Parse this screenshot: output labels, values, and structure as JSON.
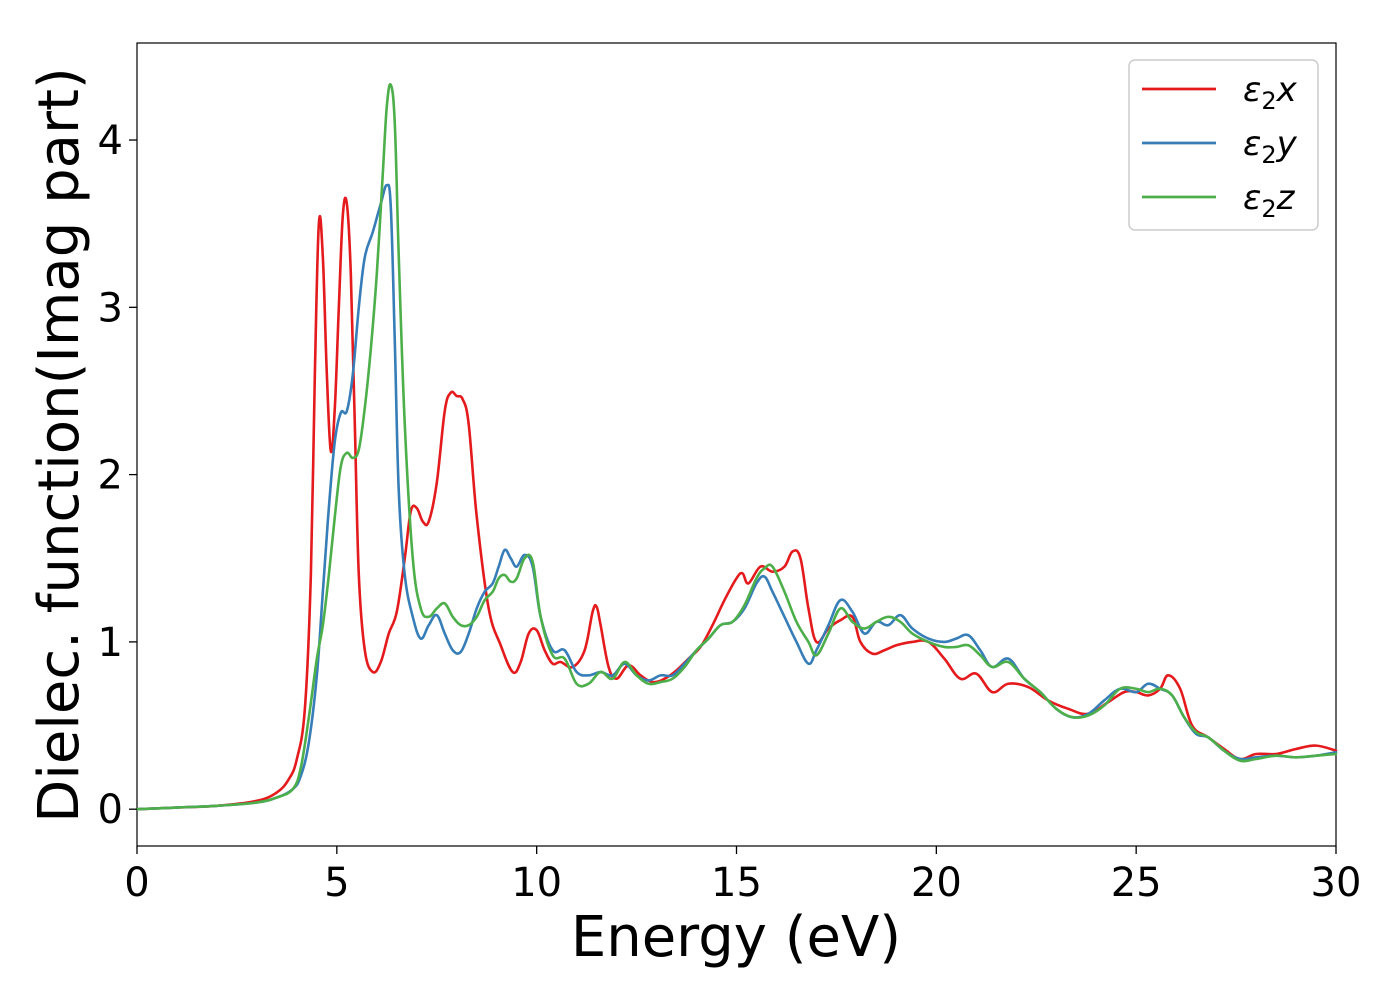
{
  "chart_data": {
    "type": "line",
    "title": "",
    "xlabel": "Energy (eV)",
    "ylabel": "Dielec. function(Imag part)",
    "xlim": [
      0,
      30
    ],
    "ylim": [
      -0.22,
      4.58
    ],
    "xticks": [
      0,
      5,
      10,
      15,
      20,
      25,
      30
    ],
    "yticks": [
      0,
      1,
      2,
      3,
      4
    ],
    "grid": false,
    "legend_position": "top-right",
    "series": [
      {
        "name": "ε2x",
        "legend": {
          "base": "ε",
          "sub": "2",
          "suffix": "x"
        },
        "color": "#e41a1c",
        "x": [
          0,
          1,
          2,
          3,
          3.5,
          3.8,
          4.0,
          4.2,
          4.35,
          4.45,
          4.55,
          4.65,
          4.75,
          4.85,
          4.95,
          5.05,
          5.15,
          5.25,
          5.35,
          5.45,
          5.55,
          5.7,
          5.9,
          6.1,
          6.3,
          6.5,
          6.7,
          6.85,
          7.0,
          7.15,
          7.3,
          7.5,
          7.7,
          7.85,
          8.0,
          8.15,
          8.3,
          8.5,
          8.8,
          9.1,
          9.4,
          9.6,
          9.8,
          10.0,
          10.2,
          10.4,
          10.6,
          10.9,
          11.2,
          11.4,
          11.5,
          11.6,
          11.8,
          12.0,
          12.3,
          12.6,
          12.9,
          13.2,
          13.5,
          13.8,
          14.1,
          14.4,
          14.7,
          15.0,
          15.15,
          15.3,
          15.6,
          15.9,
          16.2,
          16.4,
          16.6,
          16.8,
          17.0,
          17.3,
          17.6,
          17.9,
          18.1,
          18.4,
          18.7,
          19.0,
          19.4,
          19.8,
          20.2,
          20.6,
          21.0,
          21.4,
          21.8,
          22.3,
          22.8,
          23.3,
          23.8,
          24.3,
          24.7,
          25.0,
          25.3,
          25.6,
          25.8,
          26.1,
          26.4,
          26.8,
          27.2,
          27.6,
          28.0,
          28.5,
          29.0,
          29.5,
          30.0
        ],
        "y": [
          0.0,
          0.01,
          0.02,
          0.05,
          0.1,
          0.18,
          0.3,
          0.6,
          1.4,
          2.6,
          3.5,
          3.3,
          2.6,
          2.14,
          2.4,
          3.0,
          3.55,
          3.62,
          3.2,
          2.3,
          1.4,
          0.95,
          0.82,
          0.88,
          1.05,
          1.18,
          1.5,
          1.78,
          1.8,
          1.72,
          1.72,
          1.95,
          2.38,
          2.49,
          2.47,
          2.45,
          2.3,
          1.75,
          1.2,
          0.98,
          0.82,
          0.88,
          1.05,
          1.07,
          0.95,
          0.87,
          0.88,
          0.85,
          0.95,
          1.18,
          1.21,
          1.1,
          0.85,
          0.78,
          0.86,
          0.8,
          0.76,
          0.78,
          0.83,
          0.9,
          0.97,
          1.1,
          1.25,
          1.38,
          1.41,
          1.35,
          1.45,
          1.42,
          1.45,
          1.54,
          1.5,
          1.2,
          1.0,
          1.08,
          1.13,
          1.15,
          1.0,
          0.93,
          0.95,
          0.98,
          1.0,
          1.0,
          0.9,
          0.78,
          0.81,
          0.7,
          0.75,
          0.73,
          0.65,
          0.6,
          0.57,
          0.64,
          0.7,
          0.7,
          0.68,
          0.72,
          0.8,
          0.72,
          0.5,
          0.43,
          0.36,
          0.3,
          0.33,
          0.33,
          0.36,
          0.38,
          0.35
        ]
      },
      {
        "name": "ε2y",
        "legend": {
          "base": "ε",
          "sub": "2",
          "suffix": "y"
        },
        "color": "#377eb8",
        "x": [
          0,
          1,
          2,
          3,
          3.5,
          3.9,
          4.1,
          4.3,
          4.5,
          4.65,
          4.8,
          4.95,
          5.1,
          5.25,
          5.4,
          5.55,
          5.7,
          5.9,
          6.1,
          6.25,
          6.35,
          6.45,
          6.55,
          6.7,
          6.9,
          7.1,
          7.3,
          7.5,
          7.7,
          7.9,
          8.1,
          8.3,
          8.5,
          8.7,
          8.9,
          9.05,
          9.2,
          9.35,
          9.5,
          9.7,
          9.9,
          10.1,
          10.4,
          10.7,
          11.0,
          11.3,
          11.6,
          11.9,
          12.2,
          12.5,
          12.8,
          13.1,
          13.4,
          13.7,
          14.0,
          14.3,
          14.6,
          14.9,
          15.2,
          15.5,
          15.7,
          15.9,
          16.2,
          16.5,
          16.8,
          17.0,
          17.3,
          17.6,
          17.9,
          18.2,
          18.5,
          18.8,
          19.1,
          19.4,
          19.8,
          20.2,
          20.5,
          20.8,
          21.1,
          21.4,
          21.8,
          22.2,
          22.6,
          23.0,
          23.4,
          23.8,
          24.2,
          24.6,
          25.0,
          25.3,
          25.6,
          25.9,
          26.2,
          26.5,
          26.8,
          27.2,
          27.6,
          28.0,
          28.5,
          29.0,
          29.5,
          30.0
        ],
        "y": [
          0.0,
          0.01,
          0.02,
          0.04,
          0.07,
          0.12,
          0.2,
          0.4,
          0.8,
          1.3,
          1.8,
          2.2,
          2.37,
          2.38,
          2.6,
          3.0,
          3.3,
          3.45,
          3.62,
          3.73,
          3.6,
          2.8,
          1.9,
          1.4,
          1.15,
          1.02,
          1.1,
          1.16,
          1.05,
          0.95,
          0.94,
          1.05,
          1.2,
          1.3,
          1.35,
          1.45,
          1.55,
          1.5,
          1.45,
          1.52,
          1.45,
          1.15,
          0.95,
          0.95,
          0.82,
          0.8,
          0.82,
          0.8,
          0.87,
          0.8,
          0.77,
          0.8,
          0.8,
          0.87,
          0.95,
          1.02,
          1.1,
          1.12,
          1.2,
          1.35,
          1.39,
          1.3,
          1.15,
          1.0,
          0.87,
          0.95,
          1.1,
          1.25,
          1.18,
          1.05,
          1.12,
          1.1,
          1.16,
          1.08,
          1.02,
          1.0,
          1.02,
          1.04,
          0.95,
          0.85,
          0.9,
          0.78,
          0.7,
          0.6,
          0.55,
          0.57,
          0.65,
          0.72,
          0.7,
          0.75,
          0.72,
          0.68,
          0.55,
          0.45,
          0.43,
          0.35,
          0.3,
          0.31,
          0.32,
          0.31,
          0.32,
          0.34
        ]
      },
      {
        "name": "ε2z",
        "legend": {
          "base": "ε",
          "sub": "2",
          "suffix": "z"
        },
        "color": "#4daf4a",
        "x": [
          0,
          1,
          2,
          3,
          3.5,
          3.9,
          4.1,
          4.3,
          4.5,
          4.65,
          4.8,
          4.95,
          5.1,
          5.25,
          5.4,
          5.55,
          5.7,
          5.85,
          6.0,
          6.15,
          6.25,
          6.35,
          6.45,
          6.55,
          6.7,
          6.9,
          7.1,
          7.3,
          7.5,
          7.7,
          7.9,
          8.1,
          8.3,
          8.5,
          8.7,
          8.9,
          9.05,
          9.2,
          9.35,
          9.5,
          9.7,
          9.9,
          10.1,
          10.4,
          10.7,
          11.0,
          11.3,
          11.6,
          11.9,
          12.2,
          12.5,
          12.8,
          13.1,
          13.4,
          13.7,
          14.0,
          14.3,
          14.6,
          14.9,
          15.2,
          15.5,
          15.7,
          15.9,
          16.2,
          16.5,
          16.8,
          17.0,
          17.3,
          17.6,
          17.9,
          18.2,
          18.5,
          18.8,
          19.1,
          19.4,
          19.8,
          20.2,
          20.5,
          20.8,
          21.1,
          21.4,
          21.8,
          22.2,
          22.6,
          23.0,
          23.4,
          23.8,
          24.2,
          24.6,
          25.0,
          25.3,
          25.6,
          25.9,
          26.2,
          26.5,
          26.8,
          27.2,
          27.6,
          28.0,
          28.5,
          29.0,
          29.5,
          30.0
        ],
        "y": [
          0.0,
          0.01,
          0.02,
          0.04,
          0.07,
          0.12,
          0.25,
          0.55,
          0.9,
          1.1,
          1.4,
          1.75,
          2.05,
          2.13,
          2.1,
          2.15,
          2.4,
          2.75,
          3.2,
          3.8,
          4.2,
          4.33,
          4.1,
          3.3,
          2.3,
          1.5,
          1.2,
          1.15,
          1.2,
          1.23,
          1.15,
          1.1,
          1.1,
          1.15,
          1.25,
          1.3,
          1.38,
          1.4,
          1.36,
          1.38,
          1.5,
          1.48,
          1.15,
          0.92,
          0.9,
          0.75,
          0.75,
          0.82,
          0.78,
          0.88,
          0.8,
          0.75,
          0.76,
          0.78,
          0.85,
          0.95,
          1.02,
          1.1,
          1.12,
          1.22,
          1.38,
          1.44,
          1.45,
          1.3,
          1.12,
          1.0,
          0.92,
          1.05,
          1.2,
          1.12,
          1.08,
          1.12,
          1.15,
          1.12,
          1.05,
          1.0,
          0.97,
          0.97,
          0.98,
          0.92,
          0.85,
          0.88,
          0.78,
          0.7,
          0.6,
          0.55,
          0.56,
          0.62,
          0.72,
          0.72,
          0.7,
          0.72,
          0.68,
          0.55,
          0.46,
          0.43,
          0.35,
          0.29,
          0.3,
          0.32,
          0.31,
          0.32,
          0.33
        ]
      }
    ]
  }
}
